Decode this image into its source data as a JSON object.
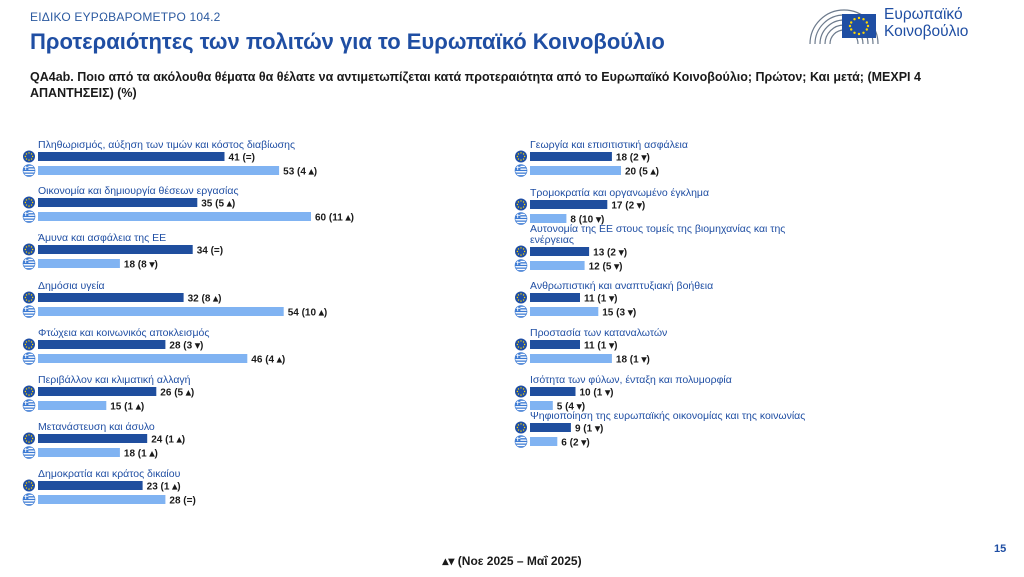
{
  "header": {
    "survey_tag": "ΕΙΔΙΚΟ ΕΥΡΩΒΑΡΟΜΕΤΡΟ 104.2",
    "title": "Προτεραιότητες των πολιτών για το Ευρωπαϊκό Κοινοβούλιο",
    "question": "QA4ab. Ποιο από τα ακόλουθα θέματα θα θέλατε να αντιμετωπίζεται κατά προτεραιότητα από το Ευρωπαϊκό Κοινοβούλιο; Πρώτον; Και μετά; (ΜΕΧΡΙ 4 ΑΠΑΝΤΗΣΕΙΣ) (%)"
  },
  "logo": {
    "line1": "Ευρωπαϊκό",
    "line2": "Κοινοβούλιο",
    "icon": "european-parliament-hemicycle-and-eu-flag"
  },
  "footer": {
    "note": "▴▾ (Νοε 2025 – Μαΐ 2025)",
    "page_number": "15"
  },
  "colors": {
    "eu_bar": "#1f4e9e",
    "greece_bar": "#80b3f2",
    "label_text": "#1f4ea3",
    "up_arrow": "#1a1a1a",
    "down_arrow": "#1a1a1a"
  },
  "chart_data": {
    "type": "bar",
    "orientation": "horizontal",
    "series": [
      {
        "key": "eu",
        "icon": "eu-flag-icon"
      },
      {
        "key": "gr",
        "icon": "greece-flag-icon"
      }
    ],
    "xlim": [
      0,
      60
    ],
    "items": [
      {
        "label": "Πληθωρισμός, αύξηση των τιμών και κόστος διαβίωσης",
        "eu": 41,
        "eu_change": "(=)",
        "gr": 53,
        "gr_change": "(4 ▴)"
      },
      {
        "label": "Οικονομία και δημιουργία θέσεων εργασίας",
        "eu": 35,
        "eu_change": "(5 ▴)",
        "gr": 60,
        "gr_change": "(11 ▴)"
      },
      {
        "label": "Άμυνα και ασφάλεια της ΕΕ",
        "eu": 34,
        "eu_change": "(=)",
        "gr": 18,
        "gr_change": "(8 ▾)"
      },
      {
        "label": "Δημόσια υγεία",
        "eu": 32,
        "eu_change": "(8 ▴)",
        "gr": 54,
        "gr_change": "(10 ▴)"
      },
      {
        "label": "Φτώχεια και κοινωνικός αποκλεισμός",
        "eu": 28,
        "eu_change": "(3 ▾)",
        "gr": 46,
        "gr_change": "(4 ▴)"
      },
      {
        "label": "Περιβάλλον και κλιματική αλλαγή",
        "eu": 26,
        "eu_change": "(5 ▴)",
        "gr": 15,
        "gr_change": "(1 ▴)"
      },
      {
        "label": "Μετανάστευση και άσυλο",
        "eu": 24,
        "eu_change": "(1 ▴)",
        "gr": 18,
        "gr_change": "(1 ▴)"
      },
      {
        "label": "Δημοκρατία και κράτος δικαίου",
        "eu": 23,
        "eu_change": "(1 ▴)",
        "gr": 28,
        "gr_change": "(=)"
      },
      {
        "label": "Γεωργία και επισιτιστική ασφάλεια",
        "eu": 18,
        "eu_change": "(2 ▾)",
        "gr": 20,
        "gr_change": "(5 ▴)"
      },
      {
        "label": "Τρομοκρατία και οργανωμένο έγκλημα",
        "eu": 17,
        "eu_change": "(2 ▾)",
        "gr": 8,
        "gr_change": "(10 ▾)"
      },
      {
        "label": "Αυτονομία της ΕΕ στους τομείς της βιομηχανίας και της ενέργειας",
        "eu": 13,
        "eu_change": "(2 ▾)",
        "gr": 12,
        "gr_change": "(5 ▾)"
      },
      {
        "label": "Ανθρωπιστική και αναπτυξιακή βοήθεια",
        "eu": 11,
        "eu_change": "(1 ▾)",
        "gr": 15,
        "gr_change": "(3 ▾)"
      },
      {
        "label": "Προστασία των καταναλωτών",
        "eu": 11,
        "eu_change": "(1 ▾)",
        "gr": 18,
        "gr_change": "(1 ▾)"
      },
      {
        "label": "Ισότητα των φύλων, ένταξη και πολυμορφία",
        "eu": 10,
        "eu_change": "(1 ▾)",
        "gr": 5,
        "gr_change": "(4 ▾)"
      },
      {
        "label": "Ψηφιοποίηση της ευρωπαϊκής οικονομίας και της κοινωνίας",
        "eu": 9,
        "eu_change": "(1 ▾)",
        "gr": 6,
        "gr_change": "(2 ▾)"
      }
    ]
  }
}
